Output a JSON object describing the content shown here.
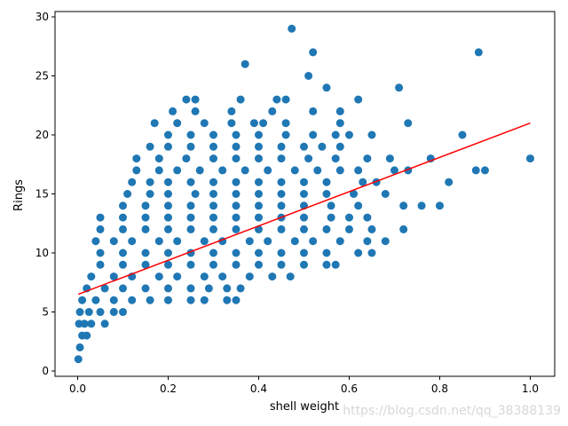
{
  "chart_data": {
    "type": "scatter",
    "title": "",
    "xlabel": "shell weight",
    "ylabel": "Rings",
    "xlim": [
      -0.05,
      1.054
    ],
    "ylim": [
      -0.45,
      30.45
    ],
    "xticks": [
      0.0,
      0.2,
      0.4,
      0.6,
      0.8,
      1.0
    ],
    "xtick_labels": [
      "0.0",
      "0.2",
      "0.4",
      "0.6",
      "0.8",
      "1.0"
    ],
    "yticks": [
      0,
      5,
      10,
      15,
      20,
      25,
      30
    ],
    "ytick_labels": [
      "0",
      "5",
      "10",
      "15",
      "20",
      "25",
      "30"
    ],
    "grid": false,
    "legend": "none",
    "series": [
      {
        "kind": "scatter",
        "color": "#1f77b4",
        "points": [
          [
            0.0015,
            1
          ],
          [
            0.005,
            2
          ],
          [
            0.01,
            3
          ],
          [
            0.02,
            3
          ],
          [
            0.003,
            4
          ],
          [
            0.015,
            4
          ],
          [
            0.03,
            4
          ],
          [
            0.06,
            4
          ],
          [
            0.005,
            5
          ],
          [
            0.025,
            5
          ],
          [
            0.05,
            5
          ],
          [
            0.08,
            5
          ],
          [
            0.1,
            5
          ],
          [
            0.01,
            6
          ],
          [
            0.04,
            6
          ],
          [
            0.08,
            6
          ],
          [
            0.12,
            6
          ],
          [
            0.16,
            6
          ],
          [
            0.2,
            6
          ],
          [
            0.25,
            6
          ],
          [
            0.28,
            6
          ],
          [
            0.33,
            6
          ],
          [
            0.35,
            6
          ],
          [
            0.02,
            7
          ],
          [
            0.06,
            7
          ],
          [
            0.1,
            7
          ],
          [
            0.15,
            7
          ],
          [
            0.2,
            7
          ],
          [
            0.25,
            7
          ],
          [
            0.29,
            7
          ],
          [
            0.33,
            7
          ],
          [
            0.36,
            7
          ],
          [
            0.03,
            8
          ],
          [
            0.08,
            8
          ],
          [
            0.12,
            8
          ],
          [
            0.18,
            8
          ],
          [
            0.22,
            8
          ],
          [
            0.28,
            8
          ],
          [
            0.32,
            8
          ],
          [
            0.38,
            8
          ],
          [
            0.43,
            8
          ],
          [
            0.47,
            8
          ],
          [
            0.05,
            9
          ],
          [
            0.1,
            9
          ],
          [
            0.15,
            9
          ],
          [
            0.2,
            9
          ],
          [
            0.25,
            9
          ],
          [
            0.3,
            9
          ],
          [
            0.35,
            9
          ],
          [
            0.4,
            9
          ],
          [
            0.45,
            9
          ],
          [
            0.5,
            9
          ],
          [
            0.55,
            9
          ],
          [
            0.57,
            9
          ],
          [
            0.05,
            10
          ],
          [
            0.1,
            10
          ],
          [
            0.15,
            10
          ],
          [
            0.2,
            10
          ],
          [
            0.25,
            10
          ],
          [
            0.3,
            10
          ],
          [
            0.35,
            10
          ],
          [
            0.4,
            10
          ],
          [
            0.45,
            10
          ],
          [
            0.5,
            10
          ],
          [
            0.55,
            10
          ],
          [
            0.62,
            10
          ],
          [
            0.65,
            10
          ],
          [
            0.04,
            11
          ],
          [
            0.08,
            11
          ],
          [
            0.12,
            11
          ],
          [
            0.18,
            11
          ],
          [
            0.22,
            11
          ],
          [
            0.28,
            11
          ],
          [
            0.32,
            11
          ],
          [
            0.38,
            11
          ],
          [
            0.42,
            11
          ],
          [
            0.48,
            11
          ],
          [
            0.52,
            11
          ],
          [
            0.58,
            11
          ],
          [
            0.64,
            11
          ],
          [
            0.68,
            11
          ],
          [
            0.05,
            12
          ],
          [
            0.1,
            12
          ],
          [
            0.15,
            12
          ],
          [
            0.2,
            12
          ],
          [
            0.25,
            12
          ],
          [
            0.3,
            12
          ],
          [
            0.35,
            12
          ],
          [
            0.4,
            12
          ],
          [
            0.45,
            12
          ],
          [
            0.5,
            12
          ],
          [
            0.55,
            12
          ],
          [
            0.6,
            12
          ],
          [
            0.65,
            12
          ],
          [
            0.72,
            12
          ],
          [
            0.05,
            13
          ],
          [
            0.1,
            13
          ],
          [
            0.15,
            13
          ],
          [
            0.2,
            13
          ],
          [
            0.25,
            13
          ],
          [
            0.3,
            13
          ],
          [
            0.35,
            13
          ],
          [
            0.4,
            13
          ],
          [
            0.45,
            13
          ],
          [
            0.5,
            13
          ],
          [
            0.56,
            13
          ],
          [
            0.6,
            13
          ],
          [
            0.64,
            13
          ],
          [
            0.1,
            14
          ],
          [
            0.15,
            14
          ],
          [
            0.2,
            14
          ],
          [
            0.25,
            14
          ],
          [
            0.3,
            14
          ],
          [
            0.35,
            14
          ],
          [
            0.4,
            14
          ],
          [
            0.45,
            14
          ],
          [
            0.5,
            14
          ],
          [
            0.56,
            14
          ],
          [
            0.62,
            14
          ],
          [
            0.72,
            14
          ],
          [
            0.76,
            14
          ],
          [
            0.8,
            14
          ],
          [
            0.11,
            15
          ],
          [
            0.16,
            15
          ],
          [
            0.2,
            15
          ],
          [
            0.26,
            15
          ],
          [
            0.3,
            15
          ],
          [
            0.35,
            15
          ],
          [
            0.4,
            15
          ],
          [
            0.45,
            15
          ],
          [
            0.5,
            15
          ],
          [
            0.55,
            15
          ],
          [
            0.61,
            15
          ],
          [
            0.68,
            15
          ],
          [
            0.12,
            16
          ],
          [
            0.16,
            16
          ],
          [
            0.2,
            16
          ],
          [
            0.25,
            16
          ],
          [
            0.3,
            16
          ],
          [
            0.35,
            16
          ],
          [
            0.4,
            16
          ],
          [
            0.45,
            16
          ],
          [
            0.5,
            16
          ],
          [
            0.55,
            16
          ],
          [
            0.63,
            16
          ],
          [
            0.66,
            16
          ],
          [
            0.82,
            16
          ],
          [
            0.13,
            17
          ],
          [
            0.18,
            17
          ],
          [
            0.22,
            17
          ],
          [
            0.27,
            17
          ],
          [
            0.32,
            17
          ],
          [
            0.37,
            17
          ],
          [
            0.42,
            17
          ],
          [
            0.48,
            17
          ],
          [
            0.53,
            17
          ],
          [
            0.58,
            17
          ],
          [
            0.62,
            17
          ],
          [
            0.7,
            17
          ],
          [
            0.73,
            17
          ],
          [
            0.88,
            17
          ],
          [
            0.9,
            17
          ],
          [
            0.13,
            18
          ],
          [
            0.18,
            18
          ],
          [
            0.24,
            18
          ],
          [
            0.3,
            18
          ],
          [
            0.35,
            18
          ],
          [
            0.4,
            18
          ],
          [
            0.45,
            18
          ],
          [
            0.51,
            18
          ],
          [
            0.57,
            18
          ],
          [
            0.64,
            18
          ],
          [
            0.69,
            18
          ],
          [
            0.78,
            18
          ],
          [
            1.0,
            18
          ],
          [
            0.16,
            19
          ],
          [
            0.2,
            19
          ],
          [
            0.25,
            19
          ],
          [
            0.3,
            19
          ],
          [
            0.35,
            19
          ],
          [
            0.4,
            19
          ],
          [
            0.45,
            19
          ],
          [
            0.5,
            19
          ],
          [
            0.54,
            19
          ],
          [
            0.58,
            19
          ],
          [
            0.2,
            20
          ],
          [
            0.25,
            20
          ],
          [
            0.3,
            20
          ],
          [
            0.35,
            20
          ],
          [
            0.4,
            20
          ],
          [
            0.46,
            20
          ],
          [
            0.52,
            20
          ],
          [
            0.57,
            20
          ],
          [
            0.6,
            20
          ],
          [
            0.65,
            20
          ],
          [
            0.85,
            20
          ],
          [
            0.17,
            21
          ],
          [
            0.22,
            21
          ],
          [
            0.28,
            21
          ],
          [
            0.34,
            21
          ],
          [
            0.39,
            21
          ],
          [
            0.41,
            21
          ],
          [
            0.46,
            21
          ],
          [
            0.58,
            21
          ],
          [
            0.73,
            21
          ],
          [
            0.21,
            22
          ],
          [
            0.26,
            22
          ],
          [
            0.34,
            22
          ],
          [
            0.43,
            22
          ],
          [
            0.52,
            22
          ],
          [
            0.58,
            22
          ],
          [
            0.24,
            23
          ],
          [
            0.26,
            23
          ],
          [
            0.36,
            23
          ],
          [
            0.44,
            23
          ],
          [
            0.46,
            23
          ],
          [
            0.62,
            23
          ],
          [
            0.55,
            24
          ],
          [
            0.71,
            24
          ],
          [
            0.51,
            25
          ],
          [
            0.37,
            26
          ],
          [
            0.52,
            27
          ],
          [
            0.886,
            27
          ],
          [
            0.473,
            29
          ]
        ]
      },
      {
        "kind": "line",
        "name": "",
        "color": "#ff0000",
        "points": [
          [
            0.0015,
            6.5
          ],
          [
            1.0,
            21.0
          ]
        ]
      }
    ]
  },
  "watermark": "https://blog.csdn.net/qq_38388139"
}
